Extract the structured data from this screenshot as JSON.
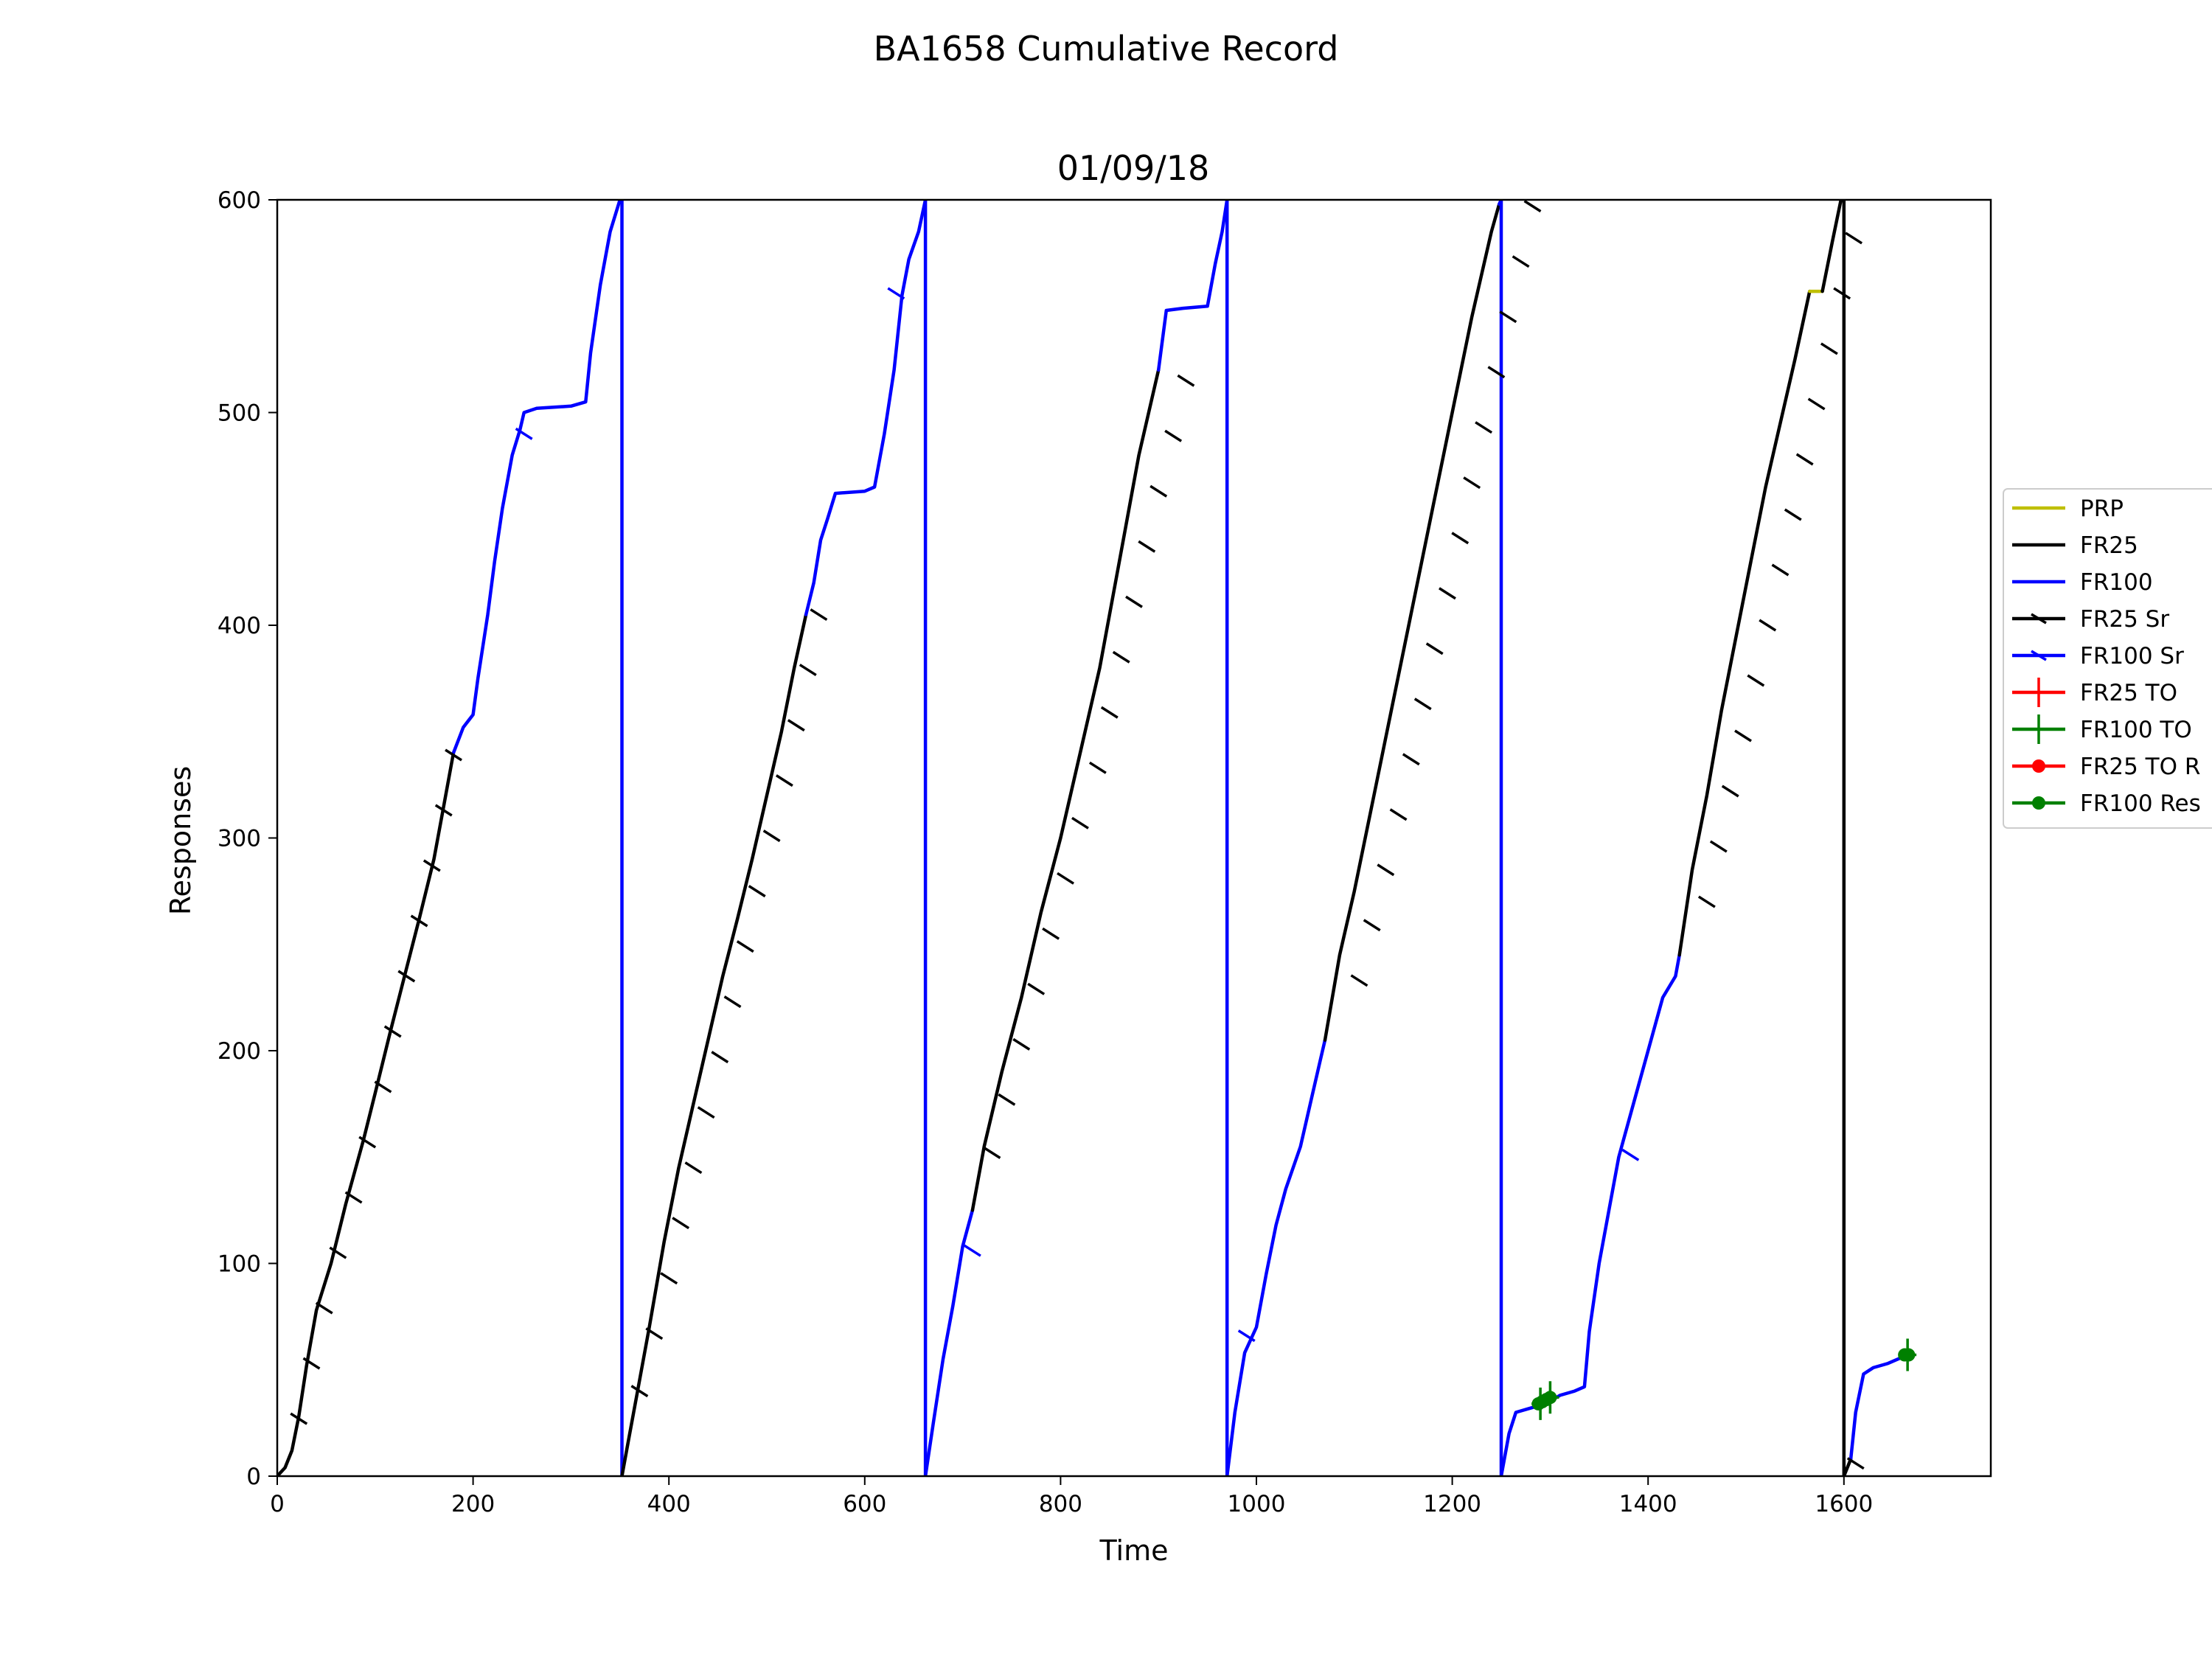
{
  "chart_data": {
    "type": "line",
    "suptitle": "BA1658 Cumulative Record",
    "title": "01/09/18",
    "xlabel": "Time",
    "ylabel": "Responses",
    "xlim": [
      0,
      1750
    ],
    "ylim": [
      0,
      600
    ],
    "xticks": [
      0,
      200,
      400,
      600,
      800,
      1000,
      1200,
      1400,
      1600
    ],
    "yticks": [
      0,
      100,
      200,
      300,
      400,
      500,
      600
    ],
    "grid": false,
    "legend_position": "right-outside",
    "legend": [
      {
        "label": "PRP",
        "color": "#bfbf00",
        "marker": "none"
      },
      {
        "label": "FR25",
        "color": "#000000",
        "marker": "none"
      },
      {
        "label": "FR100",
        "color": "#0000ff",
        "marker": "none"
      },
      {
        "label": "FR25 Sr",
        "color": "#000000",
        "marker": "tick"
      },
      {
        "label": "FR100 Sr",
        "color": "#0000ff",
        "marker": "tick"
      },
      {
        "label": "FR25 TO",
        "color": "#ff0000",
        "marker": "plus"
      },
      {
        "label": "FR100 TO",
        "color": "#008000",
        "marker": "plus"
      },
      {
        "label": "FR25 TO R",
        "color": "#ff0000",
        "marker": "dot"
      },
      {
        "label": "FR100 Res",
        "color": "#008000",
        "marker": "dot"
      }
    ],
    "series": [
      {
        "name": "FR25",
        "color": "#000000",
        "points": [
          [
            0,
            0
          ],
          [
            8,
            4
          ],
          [
            15,
            12
          ],
          [
            22,
            28
          ],
          [
            30,
            52
          ],
          [
            40,
            78
          ],
          [
            55,
            100
          ],
          [
            70,
            128
          ],
          [
            88,
            158
          ],
          [
            100,
            180
          ],
          [
            115,
            208
          ],
          [
            130,
            235
          ],
          [
            145,
            262
          ],
          [
            160,
            290
          ],
          [
            170,
            315
          ],
          [
            180,
            340
          ]
        ]
      },
      {
        "name": "FR100",
        "color": "#0000ff",
        "points": [
          [
            180,
            340
          ],
          [
            190,
            352
          ],
          [
            200,
            358
          ],
          [
            205,
            375
          ],
          [
            215,
            405
          ],
          [
            222,
            430
          ],
          [
            230,
            455
          ],
          [
            240,
            480
          ],
          [
            248,
            492
          ],
          [
            252,
            500
          ],
          [
            265,
            502
          ],
          [
            300,
            503
          ],
          [
            315,
            505
          ],
          [
            320,
            528
          ],
          [
            330,
            560
          ],
          [
            340,
            585
          ],
          [
            350,
            600
          ]
        ]
      },
      {
        "name": "FR100",
        "color": "#0000ff",
        "points": [
          [
            350,
            600
          ],
          [
            352,
            600
          ],
          [
            352,
            0
          ]
        ]
      },
      {
        "name": "FR25",
        "color": "#000000",
        "points": [
          [
            352,
            0
          ],
          [
            358,
            15
          ],
          [
            368,
            40
          ],
          [
            380,
            70
          ],
          [
            395,
            110
          ],
          [
            410,
            145
          ],
          [
            425,
            175
          ],
          [
            440,
            205
          ],
          [
            455,
            235
          ],
          [
            470,
            262
          ],
          [
            485,
            290
          ],
          [
            500,
            320
          ],
          [
            515,
            350
          ],
          [
            528,
            380
          ],
          [
            540,
            405
          ]
        ]
      },
      {
        "name": "FR100",
        "color": "#0000ff",
        "points": [
          [
            540,
            405
          ],
          [
            548,
            420
          ],
          [
            555,
            440
          ],
          [
            562,
            450
          ],
          [
            570,
            462
          ],
          [
            600,
            463
          ],
          [
            610,
            465
          ],
          [
            620,
            490
          ],
          [
            630,
            520
          ],
          [
            638,
            555
          ],
          [
            645,
            572
          ],
          [
            655,
            585
          ],
          [
            662,
            600
          ]
        ]
      },
      {
        "name": "FR100",
        "color": "#0000ff",
        "points": [
          [
            662,
            600
          ],
          [
            662,
            0
          ]
        ]
      },
      {
        "name": "FR100",
        "color": "#0000ff",
        "points": [
          [
            662,
            0
          ],
          [
            670,
            25
          ],
          [
            680,
            55
          ],
          [
            690,
            80
          ],
          [
            700,
            108
          ],
          [
            710,
            125
          ]
        ]
      },
      {
        "name": "FR25",
        "color": "#000000",
        "points": [
          [
            710,
            125
          ],
          [
            722,
            155
          ],
          [
            740,
            190
          ],
          [
            760,
            225
          ],
          [
            780,
            265
          ],
          [
            800,
            300
          ],
          [
            820,
            340
          ],
          [
            840,
            380
          ],
          [
            860,
            430
          ],
          [
            880,
            480
          ],
          [
            900,
            520
          ]
        ]
      },
      {
        "name": "FR100",
        "color": "#0000ff",
        "points": [
          [
            900,
            520
          ],
          [
            908,
            548
          ],
          [
            925,
            549
          ],
          [
            950,
            550
          ],
          [
            958,
            570
          ],
          [
            965,
            585
          ],
          [
            970,
            600
          ]
        ]
      },
      {
        "name": "FR100",
        "color": "#0000ff",
        "points": [
          [
            970,
            600
          ],
          [
            970,
            0
          ]
        ]
      },
      {
        "name": "FR100",
        "color": "#0000ff",
        "points": [
          [
            970,
            0
          ],
          [
            978,
            30
          ],
          [
            988,
            58
          ],
          [
            1000,
            70
          ],
          [
            1010,
            95
          ],
          [
            1020,
            118
          ],
          [
            1030,
            135
          ],
          [
            1045,
            155
          ],
          [
            1055,
            175
          ],
          [
            1065,
            195
          ],
          [
            1070,
            205
          ]
        ]
      },
      {
        "name": "FR25",
        "color": "#000000",
        "points": [
          [
            1070,
            205
          ],
          [
            1085,
            245
          ],
          [
            1100,
            275
          ],
          [
            1120,
            320
          ],
          [
            1140,
            365
          ],
          [
            1160,
            410
          ],
          [
            1180,
            455
          ],
          [
            1200,
            500
          ],
          [
            1220,
            545
          ],
          [
            1240,
            585
          ],
          [
            1248,
            598
          ]
        ]
      },
      {
        "name": "FR100",
        "color": "#0000ff",
        "points": [
          [
            1248,
            598
          ],
          [
            1250,
            600
          ],
          [
            1250,
            0
          ]
        ]
      },
      {
        "name": "FR100",
        "color": "#0000ff",
        "points": [
          [
            1250,
            0
          ],
          [
            1258,
            20
          ],
          [
            1265,
            30
          ],
          [
            1280,
            32
          ],
          [
            1295,
            34
          ],
          [
            1310,
            38
          ],
          [
            1325,
            40
          ],
          [
            1335,
            42
          ],
          [
            1340,
            68
          ],
          [
            1350,
            100
          ],
          [
            1360,
            125
          ],
          [
            1370,
            150
          ],
          [
            1385,
            175
          ],
          [
            1400,
            200
          ],
          [
            1415,
            225
          ],
          [
            1428,
            235
          ],
          [
            1432,
            245
          ]
        ]
      },
      {
        "name": "FR25",
        "color": "#000000",
        "points": [
          [
            1432,
            245
          ],
          [
            1445,
            285
          ],
          [
            1460,
            320
          ],
          [
            1475,
            360
          ],
          [
            1490,
            395
          ],
          [
            1505,
            430
          ],
          [
            1520,
            465
          ],
          [
            1535,
            495
          ],
          [
            1550,
            525
          ],
          [
            1565,
            557
          ]
        ]
      },
      {
        "name": "PRP",
        "color": "#bfbf00",
        "points": [
          [
            1565,
            557
          ],
          [
            1578,
            557
          ]
        ]
      },
      {
        "name": "FR25",
        "color": "#000000",
        "points": [
          [
            1578,
            557
          ],
          [
            1588,
            580
          ],
          [
            1597,
            600
          ]
        ]
      },
      {
        "name": "FR25",
        "color": "#000000",
        "points": [
          [
            1597,
            600
          ],
          [
            1600,
            600
          ],
          [
            1600,
            0
          ],
          [
            1607,
            8
          ]
        ]
      },
      {
        "name": "FR100",
        "color": "#0000ff",
        "points": [
          [
            1607,
            8
          ],
          [
            1612,
            30
          ],
          [
            1620,
            48
          ],
          [
            1630,
            51
          ],
          [
            1645,
            53
          ],
          [
            1660,
            56
          ],
          [
            1668,
            57
          ]
        ]
      }
    ],
    "reinforcement_ticks": [
      {
        "color": "#000000",
        "points": [
          [
            22,
            27
          ],
          [
            35,
            53
          ],
          [
            48,
            79
          ],
          [
            62,
            105
          ],
          [
            78,
            131
          ],
          [
            92,
            157
          ],
          [
            108,
            183
          ],
          [
            118,
            209
          ],
          [
            132,
            235
          ],
          [
            145,
            261
          ],
          [
            158,
            287
          ],
          [
            170,
            313
          ],
          [
            180,
            339
          ],
          [
            370,
            40
          ],
          [
            385,
            67
          ],
          [
            400,
            93
          ],
          [
            412,
            119
          ],
          [
            425,
            145
          ],
          [
            438,
            171
          ],
          [
            452,
            197
          ],
          [
            465,
            223
          ],
          [
            478,
            249
          ],
          [
            490,
            275
          ],
          [
            505,
            301
          ],
          [
            518,
            327
          ],
          [
            530,
            353
          ],
          [
            542,
            379
          ],
          [
            553,
            405
          ],
          [
            730,
            152
          ],
          [
            745,
            177
          ],
          [
            760,
            203
          ],
          [
            775,
            229
          ],
          [
            790,
            255
          ],
          [
            805,
            281
          ],
          [
            820,
            307
          ],
          [
            838,
            333
          ],
          [
            850,
            359
          ],
          [
            862,
            385
          ],
          [
            875,
            411
          ],
          [
            888,
            437
          ],
          [
            900,
            463
          ],
          [
            915,
            489
          ],
          [
            928,
            515
          ],
          [
            1105,
            233
          ],
          [
            1118,
            259
          ],
          [
            1132,
            285
          ],
          [
            1145,
            311
          ],
          [
            1158,
            337
          ],
          [
            1170,
            363
          ],
          [
            1182,
            389
          ],
          [
            1195,
            415
          ],
          [
            1208,
            441
          ],
          [
            1220,
            467
          ],
          [
            1232,
            493
          ],
          [
            1245,
            519
          ],
          [
            1257,
            545
          ],
          [
            1270,
            571
          ],
          [
            1282,
            597
          ],
          [
            1460,
            270
          ],
          [
            1472,
            296
          ],
          [
            1484,
            322
          ],
          [
            1497,
            348
          ],
          [
            1510,
            374
          ],
          [
            1522,
            400
          ],
          [
            1535,
            426
          ],
          [
            1548,
            452
          ],
          [
            1560,
            478
          ],
          [
            1572,
            504
          ],
          [
            1585,
            530
          ],
          [
            1598,
            556
          ],
          [
            1610,
            582
          ],
          [
            1612,
            6
          ]
        ]
      },
      {
        "color": "#0000ff",
        "points": [
          [
            252,
            490
          ],
          [
            632,
            556
          ],
          [
            710,
            106
          ],
          [
            990,
            66
          ],
          [
            1382,
            151
          ]
        ]
      }
    ],
    "timeout_marks": [
      {
        "color": "#008000",
        "points": [
          [
            1290,
            34
          ],
          [
            1300,
            37
          ],
          [
            1665,
            57
          ]
        ]
      }
    ],
    "timeout_response_points": [
      {
        "color": "#008000",
        "points": [
          [
            1288,
            34
          ],
          [
            1292,
            35
          ],
          [
            1296,
            36
          ],
          [
            1300,
            37
          ],
          [
            1662,
            57
          ],
          [
            1666,
            57
          ]
        ]
      }
    ]
  }
}
